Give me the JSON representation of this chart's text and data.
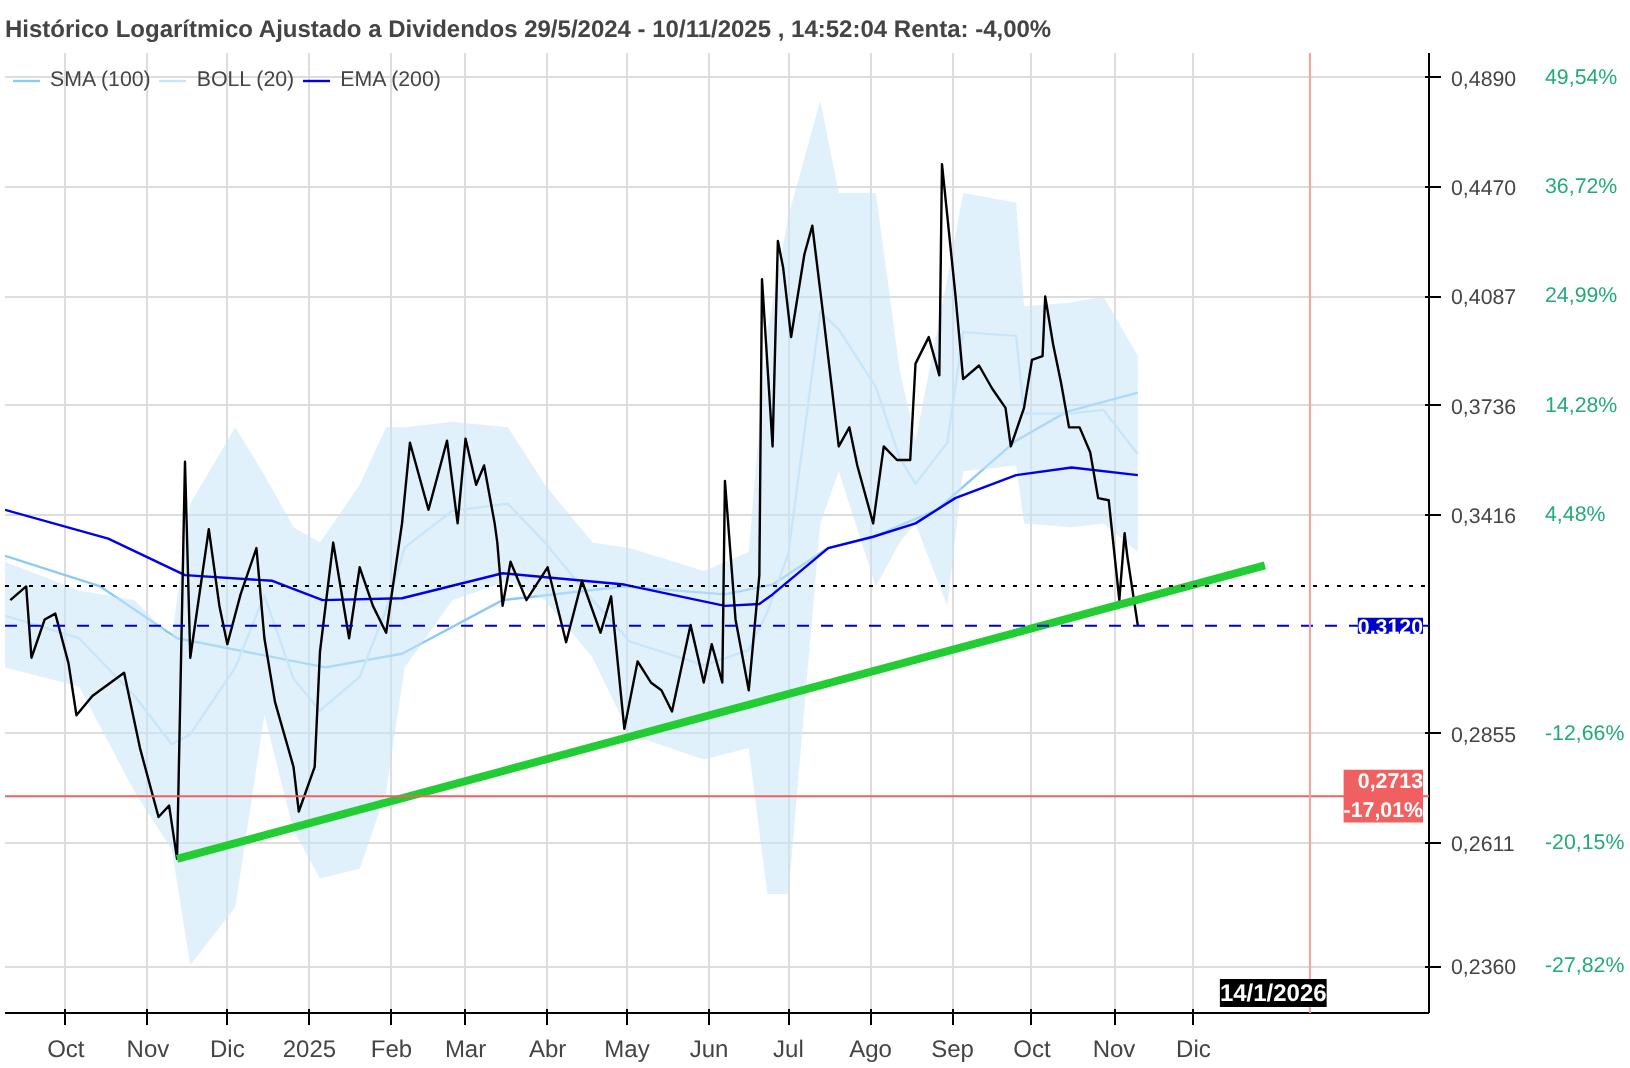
{
  "chart_data": {
    "type": "line",
    "title": "Histórico Logarítmico Ajustado a Dividendos 29/5/2024 - 10/11/2025 , 14:52:04 Renta: -4,00%",
    "series": [
      {
        "name": "SMA (100)",
        "color": "#8ccaf5",
        "x": [
          "2024-09-08",
          "2024-10-14",
          "2024-11-12",
          "2025-01-07",
          "2025-02-05",
          "2025-03-15",
          "2025-04-30",
          "2025-06-07",
          "2025-06-25",
          "2025-07-16",
          "2025-08-02",
          "2025-08-26",
          "2025-09-25",
          "2025-10-14",
          "2025-11-10"
        ],
        "values": [
          0.3304,
          0.3222,
          0.3088,
          0.3015,
          0.3049,
          0.3186,
          0.3222,
          0.3201,
          0.3227,
          0.3325,
          0.3356,
          0.3431,
          0.3631,
          0.3718,
          0.3777
        ]
      },
      {
        "name": "BOLL (20)",
        "color": "#c9e6f9",
        "x": [
          "2024-09-08",
          "2024-10-06",
          "2024-10-27",
          "2024-11-10",
          "2024-11-17",
          "2024-12-04",
          "2024-12-15",
          "2024-12-26",
          "2025-01-05",
          "2025-01-20",
          "2025-01-30",
          "2025-02-06",
          "2025-02-24",
          "2025-03-17",
          "2025-03-31",
          "2025-04-18",
          "2025-05-02",
          "2025-05-30",
          "2025-06-16",
          "2025-06-23",
          "2025-07-01",
          "2025-07-13",
          "2025-07-20",
          "2025-08-03",
          "2025-08-12",
          "2025-08-18",
          "2025-08-30",
          "2025-09-05",
          "2025-09-25",
          "2025-09-28",
          "2025-10-16",
          "2025-10-28",
          "2025-11-10"
        ],
        "values": [
          0.3146,
          0.3088,
          0.2945,
          0.2831,
          0.2854,
          0.3015,
          0.3198,
          0.2987,
          0.291,
          0.2992,
          0.3161,
          0.3327,
          0.3428,
          0.3448,
          0.334,
          0.3186,
          0.308,
          0.302,
          0.3058,
          0.3154,
          0.3312,
          0.4035,
          0.3978,
          0.3795,
          0.358,
          0.3505,
          0.3625,
          0.3969,
          0.3957,
          0.3713,
          0.3713,
          0.3724,
          0.3591
        ],
        "upper": [
          0.3288,
          0.3211,
          0.3186,
          0.3088,
          0.3448,
          0.3671,
          0.353,
          0.3382,
          0.334,
          0.3502,
          0.3671,
          0.3671,
          0.3688,
          0.3671,
          0.3502,
          0.334,
          0.3325,
          0.3263,
          0.3314,
          0.3972,
          0.4366,
          0.4798,
          0.4449,
          0.4449,
          0.3849,
          0.3631,
          0.4145,
          0.4449,
          0.4414,
          0.4054,
          0.4067,
          0.4087,
          0.3892
        ],
        "lower": [
          0.3015,
          0.2968,
          0.2722,
          0.2597,
          0.2362,
          0.2477,
          0.2899,
          0.2638,
          0.2536,
          0.2556,
          0.2722,
          0.3015,
          0.3186,
          0.3237,
          0.3186,
          0.3039,
          0.2854,
          0.2796,
          0.2822,
          0.2504,
          0.2504,
          0.3393,
          0.3541,
          0.3222,
          0.334,
          0.3393,
          0.3171,
          0.3541,
          0.3558,
          0.3393,
          0.3382,
          0.3393,
          0.3314
        ]
      },
      {
        "name": "EMA (200)",
        "color": "#0000ee",
        "x": [
          "2024-09-08",
          "2024-10-17",
          "2024-11-15",
          "2024-12-18",
          "2025-01-06",
          "2025-02-05",
          "2025-03-15",
          "2025-04-30",
          "2025-06-07",
          "2025-06-20",
          "2025-06-25",
          "2025-07-16",
          "2025-08-02",
          "2025-08-18",
          "2025-09-02",
          "2025-09-25",
          "2025-10-16",
          "2025-11-10"
        ],
        "values": [
          0.3431,
          0.3351,
          0.3252,
          0.3237,
          0.3186,
          0.3191,
          0.3257,
          0.3227,
          0.3171,
          0.3176,
          0.3201,
          0.3325,
          0.3356,
          0.3393,
          0.3464,
          0.353,
          0.3552,
          0.353
        ]
      },
      {
        "color": "#000000",
        "x": [
          "2024-09-10",
          "2024-09-16",
          "2024-09-18",
          "2024-09-23",
          "2024-09-27",
          "2024-10-02",
          "2024-10-05",
          "2024-10-11",
          "2024-10-23",
          "2024-10-29",
          "2024-11-05",
          "2024-11-09",
          "2024-11-12",
          "2024-11-15",
          "2024-11-17",
          "2024-11-24",
          "2024-11-28",
          "2024-12-01",
          "2024-12-06",
          "2024-12-12",
          "2024-12-15",
          "2024-12-19",
          "2024-12-26",
          "2024-12-28",
          "2025-01-03",
          "2025-01-05",
          "2025-01-10",
          "2025-01-16",
          "2025-01-20",
          "2025-01-25",
          "2025-01-30",
          "2025-02-05",
          "2025-02-08",
          "2025-02-15",
          "2025-02-22",
          "2025-02-26",
          "2025-03-01",
          "2025-03-05",
          "2025-03-08",
          "2025-03-12",
          "2025-03-13",
          "2025-03-15",
          "2025-03-18",
          "2025-03-24",
          "2025-04-01",
          "2025-04-08",
          "2025-04-14",
          "2025-04-21",
          "2025-04-25",
          "2025-04-30",
          "2025-05-05",
          "2025-05-10",
          "2025-05-14",
          "2025-05-18",
          "2025-05-25",
          "2025-05-30",
          "2025-06-02",
          "2025-06-06",
          "2025-06-07",
          "2025-06-11",
          "2025-06-16",
          "2025-06-20",
          "2025-06-21",
          "2025-06-25",
          "2025-06-27",
          "2025-06-29",
          "2025-07-02",
          "2025-07-07",
          "2025-07-10",
          "2025-07-14",
          "2025-07-20",
          "2025-07-24",
          "2025-07-27",
          "2025-08-02",
          "2025-08-06",
          "2025-08-11",
          "2025-08-16",
          "2025-08-18",
          "2025-08-23",
          "2025-08-27",
          "2025-08-28",
          "2025-09-02",
          "2025-09-05",
          "2025-09-11",
          "2025-09-16",
          "2025-09-21",
          "2025-09-23",
          "2025-09-28",
          "2025-10-01",
          "2025-10-05",
          "2025-10-06",
          "2025-10-09",
          "2025-10-12",
          "2025-10-15",
          "2025-10-19",
          "2025-10-23",
          "2025-10-26",
          "2025-10-30",
          "2025-11-03",
          "2025-11-05",
          "2025-11-06",
          "2025-11-10"
        ],
        "values": [
          0.3186,
          0.3222,
          0.3039,
          0.3136,
          0.3151,
          0.3025,
          0.2899,
          0.2945,
          0.3002,
          0.2822,
          0.2667,
          0.2692,
          0.2577,
          0.3569,
          0.3039,
          0.3377,
          0.3171,
          0.3073,
          0.3201,
          0.3325,
          0.3088,
          0.2931,
          0.2779,
          0.2679,
          0.2779,
          0.3054,
          0.334,
          0.3088,
          0.3273,
          0.3171,
          0.3102,
          0.3393,
          0.3625,
          0.3431,
          0.3631,
          0.3393,
          0.3637,
          0.3502,
          0.3558,
          0.3393,
          0.334,
          0.3171,
          0.3288,
          0.3186,
          0.3273,
          0.3078,
          0.3237,
          0.3102,
          0.3196,
          0.2867,
          0.303,
          0.2978,
          0.2959,
          0.2908,
          0.3122,
          0.2978,
          0.3073,
          0.2978,
          0.3513,
          0.3136,
          0.2959,
          0.3252,
          0.4145,
          0.3614,
          0.4277,
          0.4184,
          0.3953,
          0.423,
          0.4331,
          0.4035,
          0.3614,
          0.3671,
          0.3558,
          0.3393,
          0.3614,
          0.3574,
          0.3574,
          0.3868,
          0.3953,
          0.3831,
          0.4555,
          0.4099,
          0.3819,
          0.3862,
          0.3789,
          0.373,
          0.3614,
          0.373,
          0.388,
          0.3892,
          0.4087,
          0.3929,
          0.3807,
          0.3671,
          0.3671,
          0.3597,
          0.3464,
          0.3458,
          0.3186,
          0.3366,
          0.3304,
          0.312
        ]
      },
      {
        "color": "#22cc33",
        "x": [
          "2024-11-12",
          "2025-12-28"
        ],
        "values": [
          0.2577,
          0.3278
        ]
      }
    ],
    "xlim": [
      "2024-09-08",
      "2026-02-28"
    ],
    "xticks": [
      {
        "value": "2024-10-01",
        "label": "Oct"
      },
      {
        "value": "2024-11-01",
        "label": "Nov"
      },
      {
        "value": "2024-12-01",
        "label": "Dic"
      },
      {
        "value": "2025-01-01",
        "label": "2025"
      },
      {
        "value": "2025-02-01",
        "label": "Feb"
      },
      {
        "value": "2025-03-01",
        "label": "Mar"
      },
      {
        "value": "2025-04-01",
        "label": "Abr"
      },
      {
        "value": "2025-05-01",
        "label": "May"
      },
      {
        "value": "2025-06-01",
        "label": "Jun"
      },
      {
        "value": "2025-07-01",
        "label": "Jul"
      },
      {
        "value": "2025-08-01",
        "label": "Ago"
      },
      {
        "value": "2025-09-01",
        "label": "Sep"
      },
      {
        "value": "2025-10-01",
        "label": "Oct"
      },
      {
        "value": "2025-11-01",
        "label": "Nov"
      },
      {
        "value": "2025-12-01",
        "label": "Dic"
      }
    ],
    "ylim": [
      0.2271,
      0.499
    ],
    "yticks": [
      {
        "value": 0.489,
        "label": "0,4890"
      },
      {
        "value": 0.447,
        "label": "0,4470"
      },
      {
        "value": 0.4087,
        "label": "0,4087"
      },
      {
        "value": 0.3736,
        "label": "0,3736"
      },
      {
        "value": 0.3416,
        "label": "0,3416"
      },
      {
        "value": 0.2855,
        "label": "0,2855"
      },
      {
        "value": 0.2611,
        "label": "0,2611"
      },
      {
        "value": 0.236,
        "label": "0,2360"
      }
    ],
    "annotations": [
      "49,54%",
      "36,72%",
      "24,99%",
      "14,28%",
      "4,48%",
      "-12,66%",
      "-20,15%",
      "-27,82%"
    ],
    "log": true,
    "grid": true,
    "legend": "top left",
    "ref_lines": [
      {
        "axis": "y",
        "value": 0.312,
        "label": "0,3120",
        "color": "#0000cc",
        "line_style": "dashed"
      },
      {
        "axis": "y",
        "value": 0.2713,
        "label": "0,2713\n-17,01%",
        "color": "#f06060",
        "line_style": "solid"
      },
      {
        "axis": "y",
        "value": 0.3223,
        "label": null,
        "color": "#000000",
        "line_style": "dotted"
      },
      {
        "axis": "x",
        "value": "2026-01-14",
        "label": "14/1/2026",
        "color": "#f0a0a0",
        "line_style": "solid"
      }
    ]
  }
}
